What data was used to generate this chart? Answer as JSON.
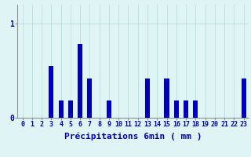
{
  "hours": [
    0,
    1,
    2,
    3,
    4,
    5,
    6,
    7,
    8,
    9,
    10,
    11,
    12,
    13,
    14,
    15,
    16,
    17,
    18,
    19,
    20,
    21,
    22,
    23
  ],
  "values": [
    0.0,
    0.0,
    0.0,
    0.55,
    0.18,
    0.18,
    0.78,
    0.42,
    0.0,
    0.18,
    0.0,
    0.0,
    0.0,
    0.42,
    0.0,
    0.42,
    0.18,
    0.18,
    0.18,
    0.0,
    0.0,
    0.0,
    0.0,
    0.42
  ],
  "bar_color": "#0000bb",
  "bg_color": "#dff5f5",
  "grid_color": "#b8dede",
  "axis_color": "#909090",
  "text_color": "#0000bb",
  "yticks": [
    0,
    1
  ],
  "ylim": [
    0,
    1.2
  ],
  "xlabel": "Précipitations 6min ( mm )",
  "tick_fontsize": 6,
  "label_fontsize": 8
}
